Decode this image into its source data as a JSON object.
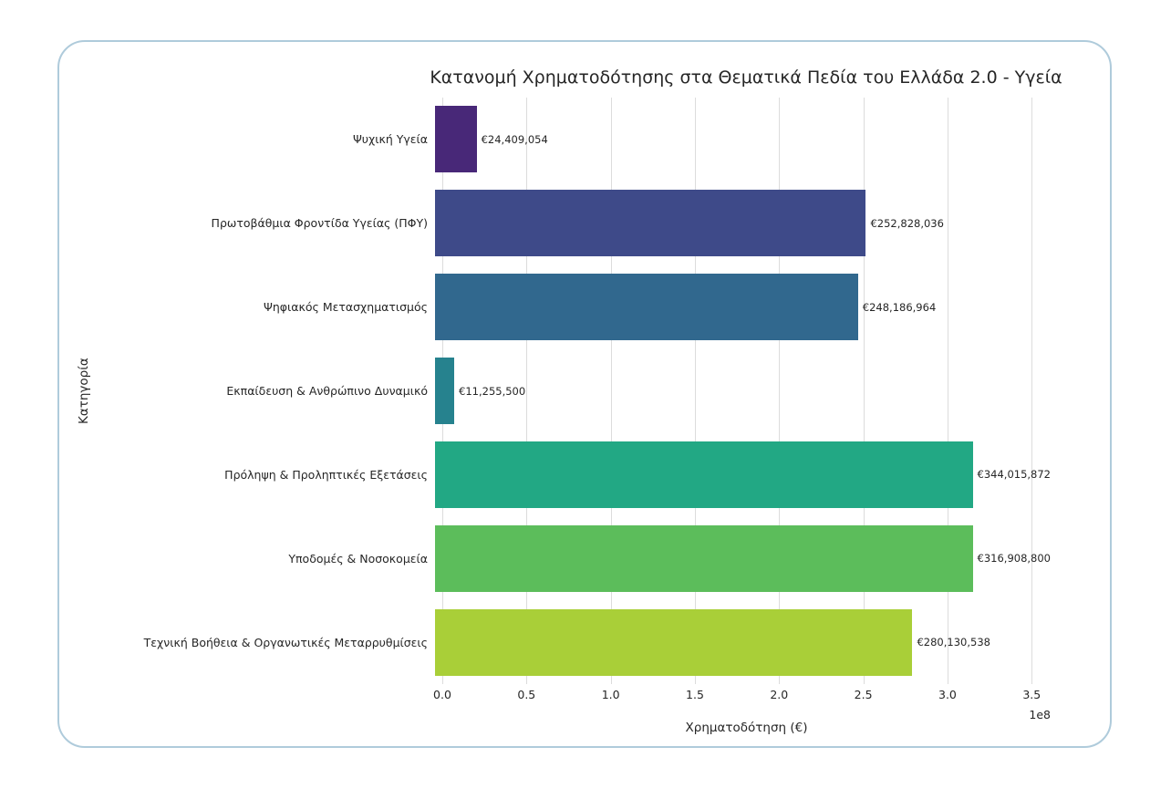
{
  "chart_data": {
    "type": "bar",
    "orientation": "horizontal",
    "title": "Κατανομή Χρηματοδότησης στα Θεματικά Πεδία του Ελλάδα 2.0 - Υγεία",
    "xlabel": "Χρηματοδότηση (€)",
    "ylabel": "Κατηγορία",
    "categories": [
      "Ψυχική Υγεία",
      "Πρωτοβάθμια Φροντίδα Υγείας (ΠΦΥ)",
      "Ψηφιακός Μετασχηματισμός",
      "Εκπαίδευση & Ανθρώπινο Δυναμικό",
      "Πρόληψη & Προληπτικές Εξετάσεις",
      "Υποδομές & Νοσοκομεία",
      "Τεχνική Βοήθεια & Οργανωτικές Μεταρρυθμίσεις"
    ],
    "values": [
      24409054,
      252828036,
      248186964,
      11255500,
      344015872,
      316908800,
      280130538
    ],
    "value_labels": [
      "€24,409,054",
      "€252,828,036",
      "€248,186,964",
      "€11,255,500",
      "€344,015,872",
      "€316,908,800",
      "€280,130,538"
    ],
    "colors": [
      "#482878",
      "#3e4a89",
      "#31688e",
      "#26828e",
      "#22a884",
      "#5cbd5b",
      "#a9cf38"
    ],
    "xticks": [
      "0.0",
      "0.5",
      "1.0",
      "1.5",
      "2.0",
      "2.5",
      "3.0",
      "3.5"
    ],
    "xtick_scale": 100000000,
    "x_offset_label": "1e8",
    "xlim": [
      0,
      361216666
    ],
    "grid": "vertical",
    "legend": "none"
  }
}
